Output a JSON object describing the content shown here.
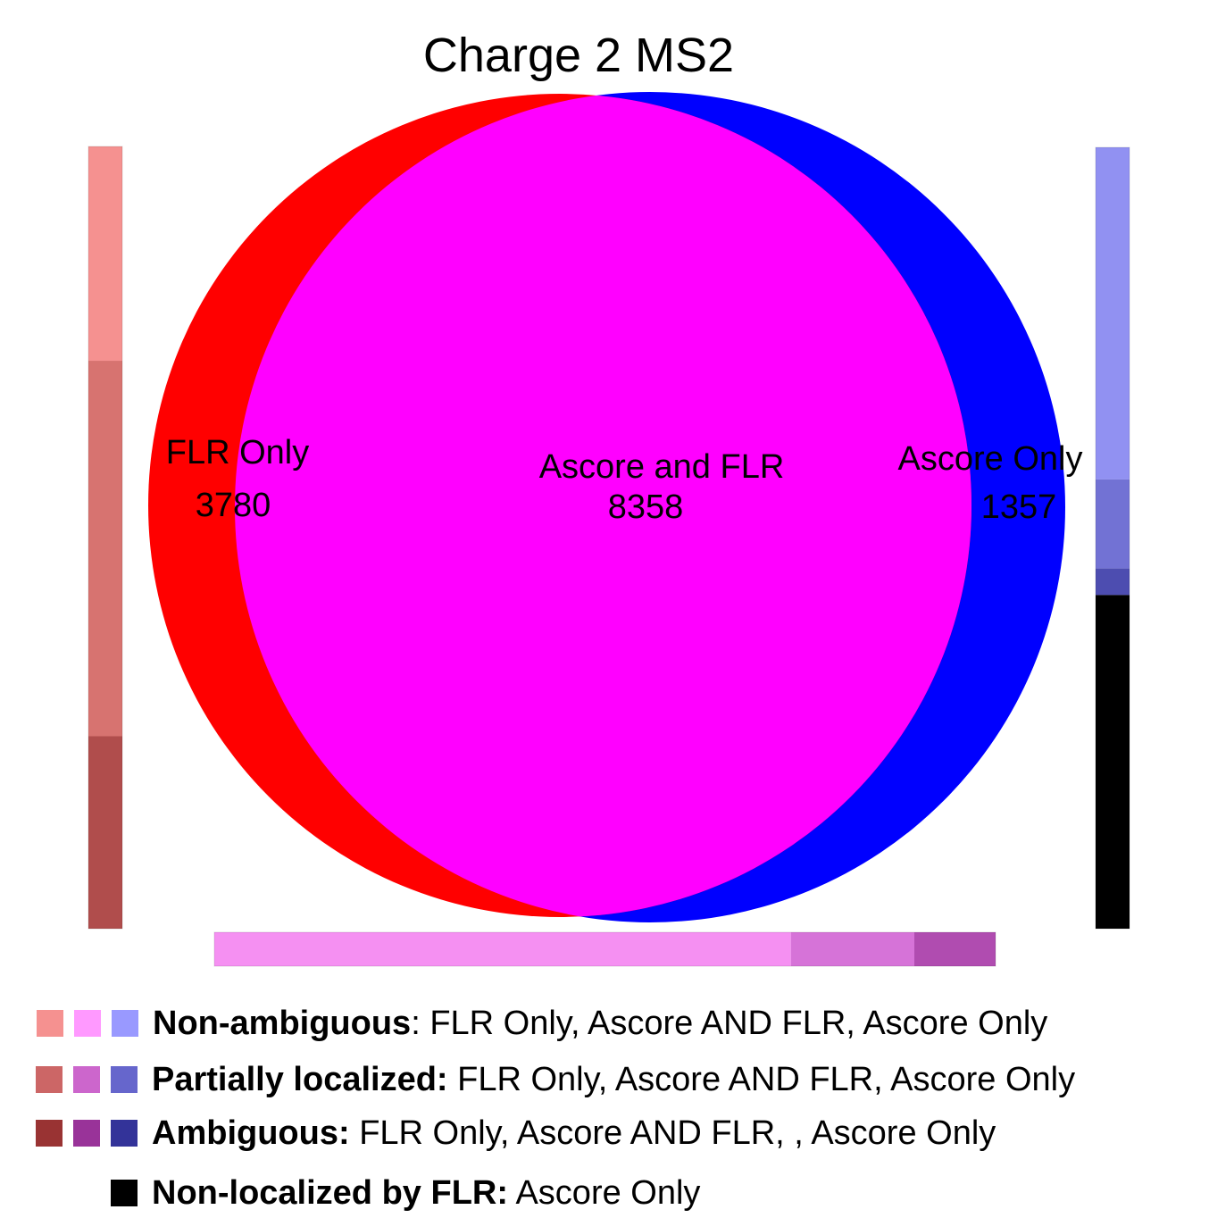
{
  "chart_data": {
    "type": "venn",
    "title": "Charge 2 MS2",
    "sets": [
      {
        "name": "FLR Only",
        "color": "#ff0000"
      },
      {
        "name": "Ascore Only",
        "color": "#0000ff"
      }
    ],
    "regions": [
      {
        "label": "FLR Only",
        "value": 3780
      },
      {
        "label": "Ascore and FLR",
        "value": 8358
      },
      {
        "label": "Ascore Only",
        "value": 1357
      }
    ],
    "intersection_color": "#ff00ff",
    "breakdown_bars": [
      {
        "region": "FLR Only",
        "orientation": "vertical",
        "segments": [
          {
            "category": "Non-ambiguous",
            "fraction": 0.274,
            "color": "#f59190"
          },
          {
            "category": "Partially localized",
            "fraction": 0.48,
            "color": "#d77370"
          },
          {
            "category": "Ambiguous",
            "fraction": 0.246,
            "color": "#b04d4c"
          }
        ]
      },
      {
        "region": "Ascore and FLR",
        "orientation": "horizontal",
        "segments": [
          {
            "category": "Non-ambiguous",
            "fraction": 0.738,
            "color": "#f590f2"
          },
          {
            "category": "Partially localized",
            "fraction": 0.158,
            "color": "#d673d8"
          },
          {
            "category": "Ambiguous",
            "fraction": 0.104,
            "color": "#b04cb0"
          }
        ]
      },
      {
        "region": "Ascore Only",
        "orientation": "vertical",
        "segments": [
          {
            "category": "Non-ambiguous",
            "fraction": 0.425,
            "color": "#9191f2"
          },
          {
            "category": "Partially localized",
            "fraction": 0.114,
            "color": "#7272d4"
          },
          {
            "category": "Ambiguous",
            "fraction": 0.034,
            "color": "#4d4db0"
          },
          {
            "category": "Non-localized by FLR",
            "fraction": 0.427,
            "color": "#000000"
          }
        ]
      }
    ]
  },
  "legend": [
    {
      "bold": "Non-ambiguous",
      "rest": ": FLR Only, Ascore AND FLR, Ascore Only",
      "swatches": [
        "#f59190",
        "#ff99ff",
        "#9999ff"
      ]
    },
    {
      "bold": "Partially localized:",
      "rest": " FLR Only, Ascore AND FLR, Ascore Only",
      "swatches": [
        "#cc6666",
        "#cc66cc",
        "#6666cc"
      ]
    },
    {
      "bold": "Ambiguous:",
      "rest": " FLR Only, Ascore AND FLR, , Ascore Only",
      "swatches": [
        "#993333",
        "#993399",
        "#333399"
      ]
    },
    {
      "bold": "Non-localized by FLR:",
      "rest": " Ascore Only",
      "swatches": [
        "#000000"
      ]
    }
  ]
}
